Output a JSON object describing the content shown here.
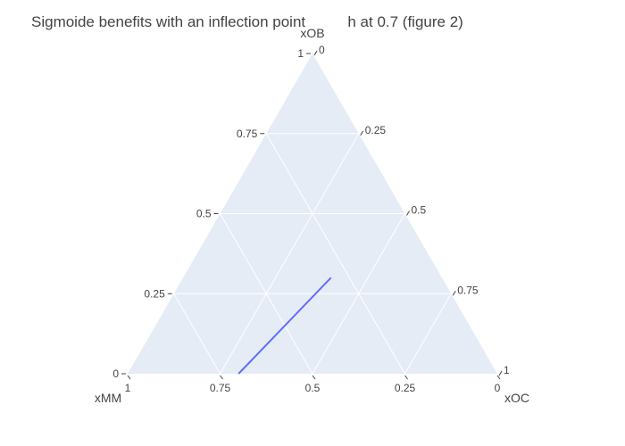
{
  "chart_data": {
    "type": "ternary",
    "title": "Sigmoide benefits with an inflection point          h at 0.7 (figure 2)",
    "axes": {
      "a": {
        "title": "xOB",
        "ticks": [
          "0",
          "0.25",
          "0.5",
          "0.75",
          "1"
        ],
        "range": [
          0,
          1
        ]
      },
      "b": {
        "title": "xMM",
        "ticks": [
          "0",
          "0.25",
          "0.5",
          "0.75",
          "1"
        ],
        "range": [
          0,
          1
        ]
      },
      "c": {
        "title": "xOC",
        "ticks": [
          "0",
          "0.25",
          "0.5",
          "0.75",
          "1"
        ],
        "range": [
          0,
          1
        ]
      }
    },
    "grid": true,
    "background": "#e5ecf6",
    "series": [
      {
        "mode": "line",
        "color": "#636efa",
        "points": [
          {
            "a": 0.0,
            "b": 0.7,
            "c": 0.3
          },
          {
            "a": 0.3,
            "b": 0.3,
            "c": 0.4
          }
        ]
      }
    ]
  }
}
